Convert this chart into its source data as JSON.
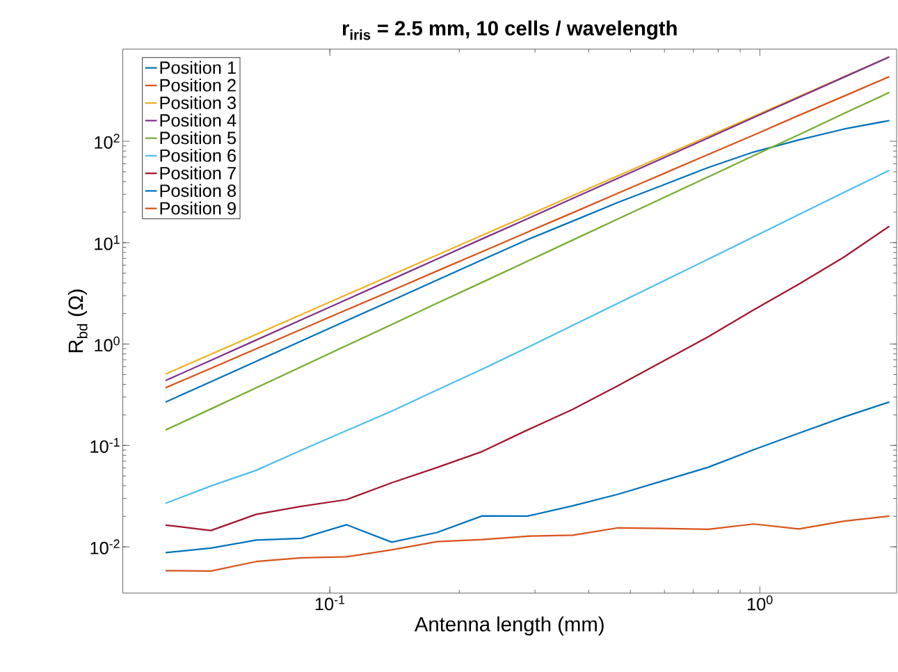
{
  "chart_data": {
    "type": "line",
    "title": "r$_{iris}$ = 2.5 mm, 10 cells / wavelength",
    "xlabel": "Antenna length (mm)",
    "ylabel": "R$_{bd}$ (Ω)",
    "log": "xy",
    "legend": "top left",
    "xlim": [
      0.033,
      2.08
    ],
    "ylim": [
      0.0035,
      810
    ],
    "xticks": [
      {
        "value": 0.1,
        "label": "10$^{-1}$"
      },
      {
        "value": 1,
        "label": "10$^{0}$"
      }
    ],
    "yticks": [
      {
        "value": 0.01,
        "label": "10$^{-2}$"
      },
      {
        "value": 0.1,
        "label": "10$^{-1}$"
      },
      {
        "value": 1,
        "label": "10$^{0}$"
      },
      {
        "value": 10,
        "label": "10$^{1}$"
      },
      {
        "value": 100,
        "label": "10$^{2}$"
      }
    ],
    "x": [
      0.0415,
      0.0529,
      0.0674,
      0.0858,
      0.1093,
      0.1393,
      0.1774,
      0.2261,
      0.2881,
      0.367,
      0.4677,
      0.5957,
      0.7591,
      0.9671,
      1.232,
      1.57,
      2.0
    ],
    "series": [
      {
        "name": "Position 1",
        "color": "#0072bd",
        "values": [
          0.268,
          0.425,
          0.675,
          1.07,
          1.7,
          2.69,
          4.27,
          6.78,
          10.7,
          16.3,
          24.9,
          37.0,
          55.1,
          78.3,
          103,
          132,
          160
        ]
      },
      {
        "name": "Position 2",
        "color": "#d95319",
        "values": [
          0.371,
          0.576,
          0.897,
          1.394,
          2.17,
          3.37,
          5.25,
          8.16,
          12.7,
          19.7,
          30.7,
          47.7,
          74.2,
          115,
          180,
          279,
          434
        ]
      },
      {
        "name": "Position 3",
        "color": "#edb120",
        "values": [
          0.506,
          0.793,
          1.245,
          1.952,
          3.06,
          4.8,
          7.53,
          11.8,
          18.5,
          29.1,
          45.6,
          71.5,
          112,
          176,
          276,
          433,
          679
        ]
      },
      {
        "name": "Position 4",
        "color": "#7e2f8e",
        "values": [
          0.437,
          0.691,
          1.094,
          1.732,
          2.74,
          4.34,
          6.87,
          10.9,
          17.2,
          27.3,
          43.2,
          68.3,
          108,
          171,
          271,
          429,
          679
        ]
      },
      {
        "name": "Position 5",
        "color": "#77ac30",
        "values": [
          0.142,
          0.229,
          0.37,
          0.597,
          0.965,
          1.56,
          2.52,
          4.06,
          6.56,
          10.6,
          17.1,
          27.6,
          44.6,
          72.0,
          116,
          188,
          303
        ]
      },
      {
        "name": "Position 6",
        "color": "#4dbeee",
        "values": [
          0.0269,
          0.0398,
          0.0568,
          0.0897,
          0.14,
          0.218,
          0.351,
          0.564,
          0.925,
          1.53,
          2.52,
          4.17,
          6.89,
          11.4,
          18.9,
          31.3,
          51.6
        ]
      },
      {
        "name": "Position 7",
        "color": "#a2142f",
        "values": [
          0.0164,
          0.0145,
          0.0209,
          0.0251,
          0.0292,
          0.0428,
          0.0605,
          0.0871,
          0.142,
          0.227,
          0.388,
          0.676,
          1.18,
          2.17,
          3.9,
          7.21,
          14.5
        ]
      },
      {
        "name": "Position 8",
        "color": "#0072bd",
        "values": [
          0.00877,
          0.00971,
          0.01164,
          0.01213,
          0.01652,
          0.01112,
          0.01384,
          0.0202,
          0.0201,
          0.0254,
          0.033,
          0.0448,
          0.061,
          0.0908,
          0.132,
          0.191,
          0.268
        ]
      },
      {
        "name": "Position 9",
        "color": "#d95319",
        "values": [
          0.00582,
          0.00578,
          0.00716,
          0.00778,
          0.00798,
          0.00935,
          0.01125,
          0.01178,
          0.01274,
          0.013,
          0.0154,
          0.0152,
          0.0149,
          0.0168,
          0.015,
          0.0179,
          0.0201
        ]
      }
    ]
  }
}
